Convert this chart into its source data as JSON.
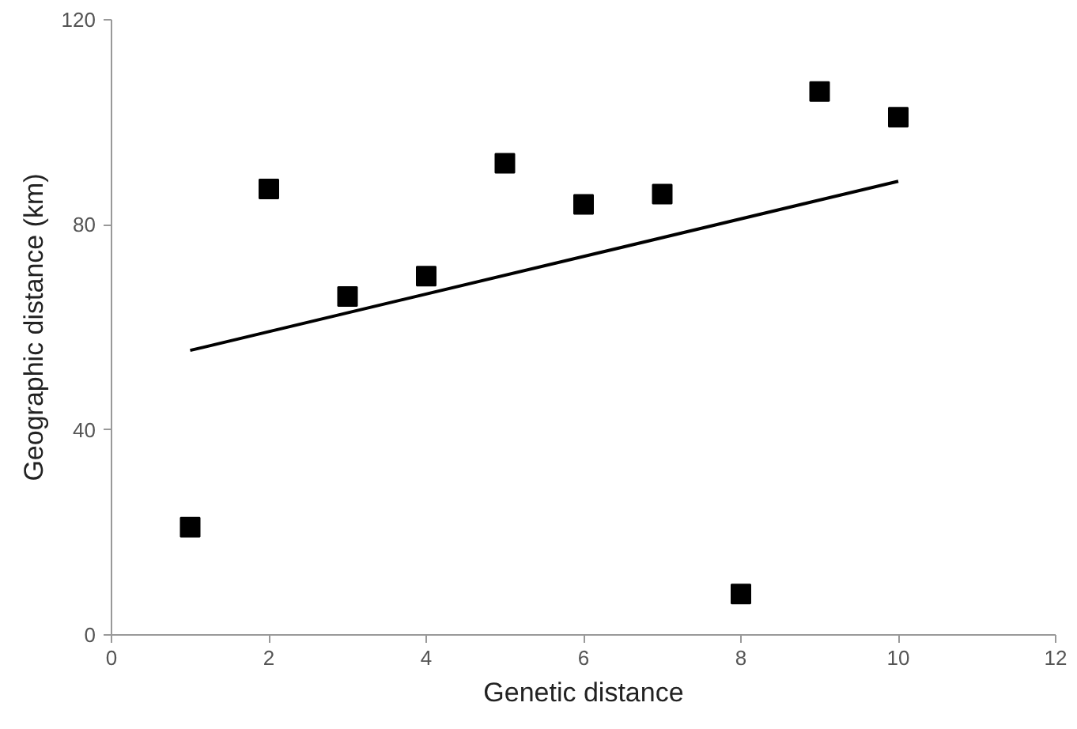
{
  "chart_data": {
    "type": "scatter",
    "xlabel": "Genetic distance",
    "ylabel": "Geographic distance (km)",
    "xlim": [
      0,
      12
    ],
    "xticks": [
      0,
      2,
      4,
      6,
      8,
      10,
      12
    ],
    "ylim": [
      0,
      120
    ],
    "yticks": [
      0,
      40,
      80,
      120
    ],
    "grid": false,
    "series": [
      {
        "marker": "square",
        "color": "#000000",
        "x": [
          1,
          2,
          3,
          4,
          5,
          6,
          7,
          8,
          9,
          10
        ],
        "values": [
          21,
          87,
          66,
          70,
          92,
          84,
          86,
          8,
          106,
          101
        ]
      },
      {
        "type": "line",
        "color": "#000000",
        "x": [
          1,
          10
        ],
        "values": [
          55.5,
          88.5
        ]
      }
    ]
  }
}
